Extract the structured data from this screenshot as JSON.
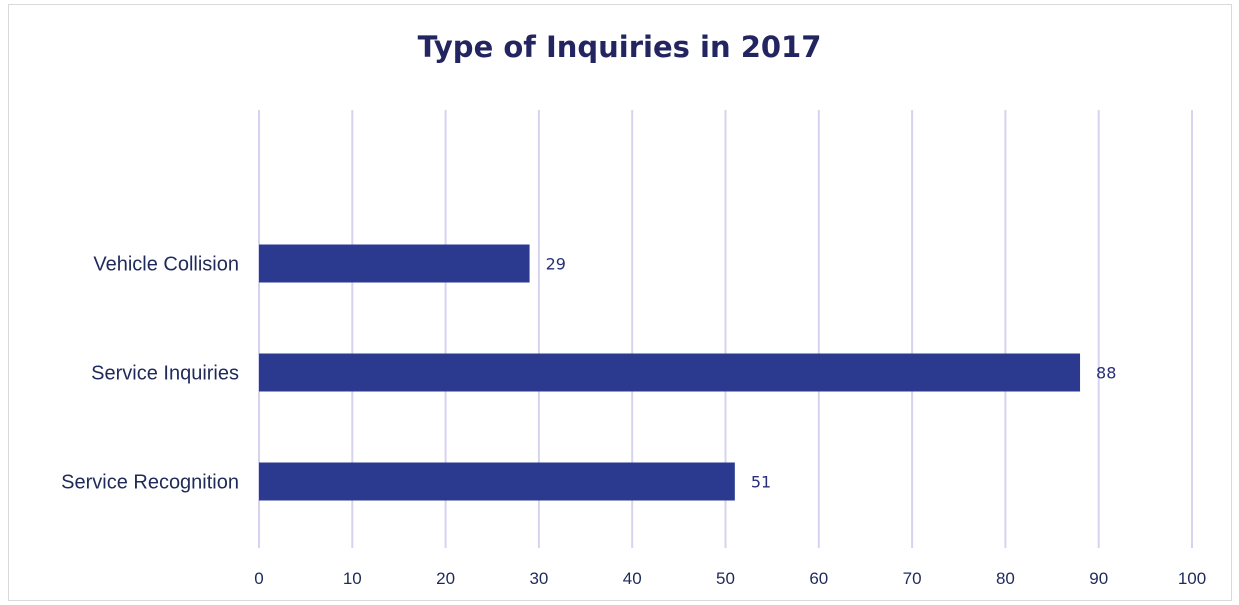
{
  "chart_data": {
    "type": "bar",
    "orientation": "horizontal",
    "title": "Type of Inquiries in 2017",
    "categories": [
      "Vehicle Collision",
      "Service Inquiries",
      "Service Recognition"
    ],
    "values": [
      29,
      88,
      51
    ],
    "xlim": [
      0,
      100
    ],
    "xticks": [
      0,
      10,
      20,
      30,
      40,
      50,
      60,
      70,
      80,
      90,
      100
    ],
    "grid": "vertical",
    "legend": "none",
    "colors": {
      "bar": "#2b3a8f",
      "grid": "#d5d3ee",
      "title": "#232560"
    }
  }
}
